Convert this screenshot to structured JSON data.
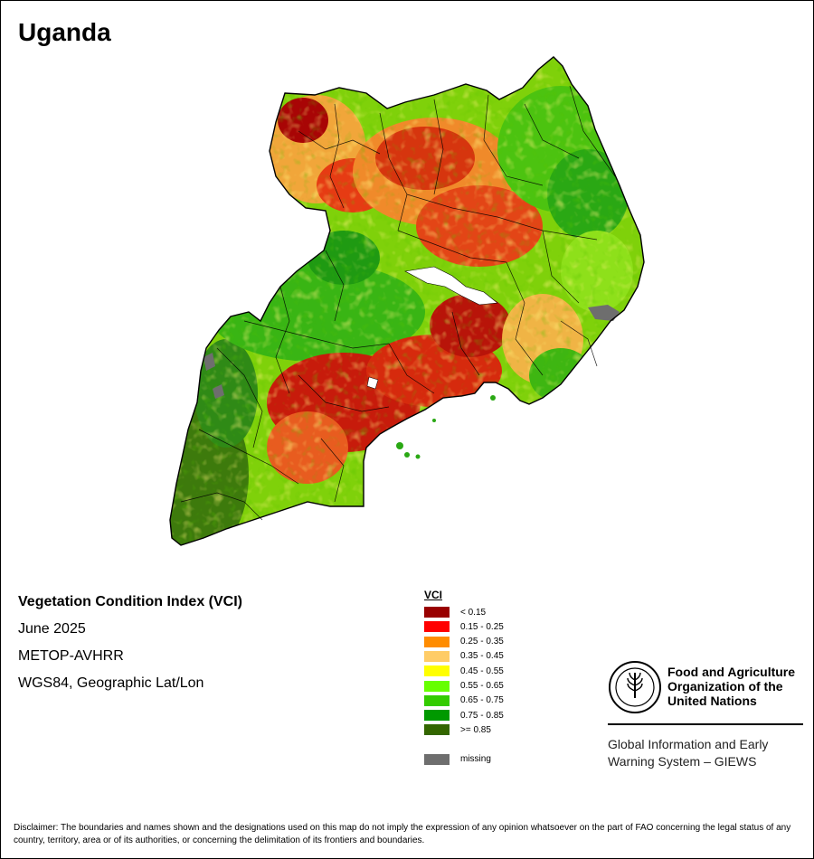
{
  "title": "Uganda",
  "info": {
    "index_name": "Vegetation Condition Index (VCI)",
    "period": "June 2025",
    "sensor": "METOP-AVHRR",
    "projection": "WGS84, Geographic Lat/Lon"
  },
  "legend": {
    "title": "VCI",
    "classes": [
      {
        "label": "< 0.15",
        "color": "#990000"
      },
      {
        "label": "0.15 - 0.25",
        "color": "#ff0000"
      },
      {
        "label": "0.25 - 0.35",
        "color": "#ff8c00"
      },
      {
        "label": "0.35 - 0.45",
        "color": "#ffcc66"
      },
      {
        "label": "0.45 - 0.55",
        "color": "#ffff00"
      },
      {
        "label": "0.55 - 0.65",
        "color": "#66ff00"
      },
      {
        "label": "0.65 - 0.75",
        "color": "#33cc00"
      },
      {
        "label": "0.75 - 0.85",
        "color": "#009900"
      },
      {
        "label": ">= 0.85",
        "color": "#336600"
      }
    ],
    "missing": {
      "label": "missing",
      "color": "#6e6e6e"
    }
  },
  "organization": {
    "logo_text": "FAO",
    "name_line1": "Food and Agriculture",
    "name_line2": "Organization of the",
    "name_line3": "United Nations",
    "system_line1": "Global Information and Early",
    "system_line2": "Warning System – GIEWS"
  },
  "disclaimer": "Disclaimer: The boundaries and names shown and the designations used on this map do not imply the expression of any opinion whatsoever on the part of FAO concerning the legal status of any country, territory, area or of its authorities, or concerning the delimitation of its frontiers and boundaries."
}
